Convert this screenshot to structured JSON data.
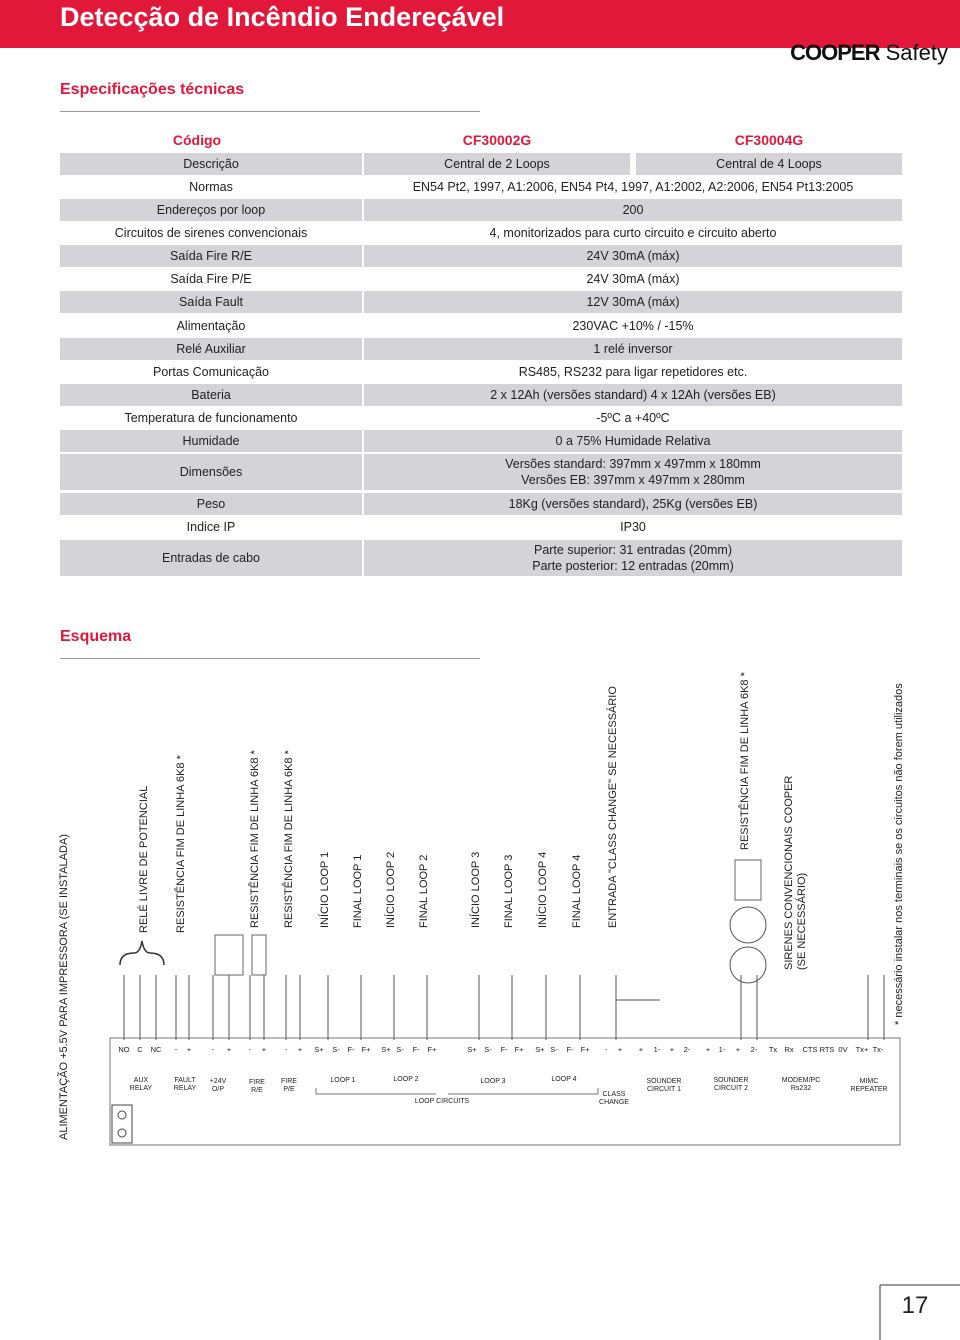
{
  "header": {
    "title": "Detecção de Incêndio Endereçável",
    "logo": {
      "brand": "COOPER",
      "suffix": "Safety"
    }
  },
  "specs": {
    "heading": "Especificações técnicas",
    "table": {
      "header": [
        "Código",
        "CF30002G",
        "CF30004G"
      ],
      "rows": [
        {
          "label": "Descrição",
          "values": [
            [
              "Central de 2 Loops"
            ],
            [
              "Central de 4 Loops"
            ]
          ]
        },
        {
          "label": "Normas",
          "values": [
            [
              "EN54 Pt2, 1997, A1:2006, EN54 Pt4, 1997, A1:2002, A2:2006, EN54 Pt13:2005"
            ]
          ]
        },
        {
          "label": "Endereços por loop",
          "values": [
            [
              "200"
            ]
          ]
        },
        {
          "label": "Circuitos de sirenes convencionais",
          "values": [
            [
              "4, monitorizados para curto circuito e circuito aberto"
            ]
          ]
        },
        {
          "label": "Saída Fire R/E",
          "values": [
            [
              "24V 30mA (máx)"
            ]
          ]
        },
        {
          "label": "Saída Fire P/E",
          "values": [
            [
              "24V 30mA (máx)"
            ]
          ]
        },
        {
          "label": "Saída Fault",
          "values": [
            [
              "12V 30mA (máx)"
            ]
          ]
        },
        {
          "label": "Alimentação",
          "values": [
            [
              "230VAC +10% / -15%"
            ]
          ]
        },
        {
          "label": "Relé Auxiliar",
          "values": [
            [
              "1 relé inversor"
            ]
          ]
        },
        {
          "label": "Portas Comunicação",
          "values": [
            [
              "RS485, RS232 para ligar repetidores etc."
            ]
          ]
        },
        {
          "label": "Bateria",
          "values": [
            [
              "2 x 12Ah (versões standard) 4 x 12Ah (versões EB)"
            ]
          ]
        },
        {
          "label": "Temperatura de funcionamento",
          "values": [
            [
              "-5ºC a +40ºC"
            ]
          ]
        },
        {
          "label": "Humidade",
          "values": [
            [
              "0 a 75% Humidade Relativa"
            ]
          ]
        },
        {
          "label": "Dimensões",
          "values": [
            [
              "Versões standard: 397mm x 497mm x 180mm",
              "Versões EB: 397mm x 497mm x 280mm"
            ]
          ]
        },
        {
          "label": "Peso",
          "values": [
            [
              "18Kg (versões standard), 25Kg (versões EB)"
            ]
          ]
        },
        {
          "label": "Indice IP",
          "values": [
            [
              "IP30"
            ]
          ]
        },
        {
          "label": "Entradas de cabo",
          "values": [
            [
              "Parte superior: 31 entradas (20mm)",
              "Parte posterior: 12 entradas (20mm)"
            ]
          ]
        }
      ]
    }
  },
  "schema": {
    "heading": "Esquema",
    "labels": [
      "ALIMENTAÇÃO +5.5V PARA IMPRESSORA (SE INSTALADA)",
      "RELÉ LIVRE DE POTENCIAL",
      "RESISTÊNCIA FIM DE LINHA 6K8 *",
      "RESISTÊNCIA FIM DE LINHA 6K8 *",
      "RESISTÊNCIA FIM DE LINHA 6K8 *",
      "INÍCIO LOOP 1",
      "FINAL LOOP 1",
      "INÍCIO LOOP 2",
      "FINAL LOOP 2",
      "INÍCIO LOOP 3",
      "FINAL LOOP 3",
      "INÍCIO LOOP 4",
      "FINAL LOOP 4",
      "ENTRADA \"CLASS CHANGE\" SE NECESSÁRIO",
      "RESISTÊNCIA FIM DE LINHA 6K8 *",
      "SIRENES CONVENCIONAIS COOPER",
      "(SE NECESSÁRIO)"
    ],
    "terminals": [
      "NO",
      "C",
      "NC",
      "-",
      "+",
      "-",
      "+",
      "-",
      "+",
      "-",
      "+",
      "S+",
      "S-",
      "F-",
      "F+",
      "S+",
      "S-",
      "F-",
      "F+",
      "S+",
      "S-",
      "F-",
      "F+",
      "S+",
      "S-",
      "F-",
      "F+",
      "-",
      "+",
      "+",
      "1-",
      "+",
      "2-",
      "+",
      "1-",
      "+",
      "2-",
      "Tx",
      "Rx",
      "CTS",
      "RTS",
      "0V",
      "Tx+",
      "Tx-"
    ],
    "groups": [
      [
        "AUX",
        "RELAY"
      ],
      [
        "FAULT",
        "RELAY"
      ],
      [
        "+24V",
        "O/P"
      ],
      [
        "FIRE",
        "R/E"
      ],
      [
        "FIRE",
        "P/E"
      ],
      [
        "LOOP 1"
      ],
      [
        "LOOP 2"
      ],
      [
        "LOOP CIRCUITS"
      ],
      [
        "LOOP 3"
      ],
      [
        "LOOP 4"
      ],
      [
        "CLASS",
        "CHANGE"
      ],
      [
        "SOUNDER",
        "CIRCUIT 1"
      ],
      [
        "SOUNDER",
        "CIRCUIT 2"
      ],
      [
        "MODEM/PC",
        "Rs232"
      ],
      [
        "MIMC",
        "REPEATER"
      ]
    ],
    "footnote": "* necessário instalar nos terminais se os circuitos não forem utilizados",
    "page_number": "17"
  }
}
